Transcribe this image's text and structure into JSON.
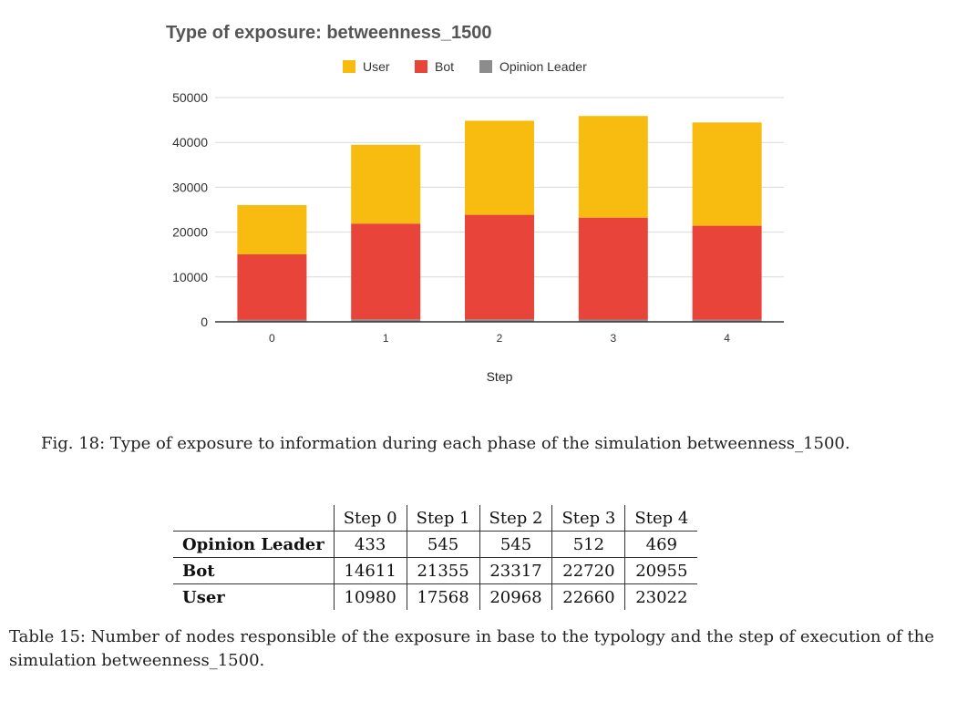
{
  "chart_data": {
    "type": "bar",
    "stacked": true,
    "title": "Type of exposure: betweenness_1500",
    "xlabel": "Step",
    "ylabel": "",
    "categories": [
      "0",
      "1",
      "2",
      "3",
      "4"
    ],
    "ylim": [
      0,
      50000
    ],
    "yticks": [
      "0",
      "10000",
      "20000",
      "30000",
      "40000",
      "50000"
    ],
    "legend_position": "top",
    "grid": true,
    "series": [
      {
        "name": "Opinion Leader",
        "color": "#8c8c8c",
        "values": [
          433,
          545,
          545,
          512,
          469
        ]
      },
      {
        "name": "Bot",
        "color": "#e8443a",
        "values": [
          14611,
          21355,
          23317,
          22720,
          20955
        ]
      },
      {
        "name": "User",
        "color": "#f8bb0f",
        "values": [
          10980,
          17568,
          20968,
          22660,
          23022
        ]
      }
    ],
    "legend_order": [
      "User",
      "Bot",
      "Opinion Leader"
    ]
  },
  "figure_caption": "Fig. 18: Type of exposure to information during each phase of the simulation betweenness_1500.",
  "table": {
    "columns": [
      "Step 0",
      "Step 1",
      "Step 2",
      "Step 3",
      "Step 4"
    ],
    "rows": [
      {
        "label": "Opinion Leader",
        "values": [
          "433",
          "545",
          "545",
          "512",
          "469"
        ]
      },
      {
        "label": "Bot",
        "values": [
          "14611",
          "21355",
          "23317",
          "22720",
          "20955"
        ]
      },
      {
        "label": "User",
        "values": [
          "10980",
          "17568",
          "20968",
          "22660",
          "23022"
        ]
      }
    ]
  },
  "table_caption": "Table 15: Number of nodes responsible of the exposure in base to the typology and the step of execution of the simulation betweenness_1500."
}
